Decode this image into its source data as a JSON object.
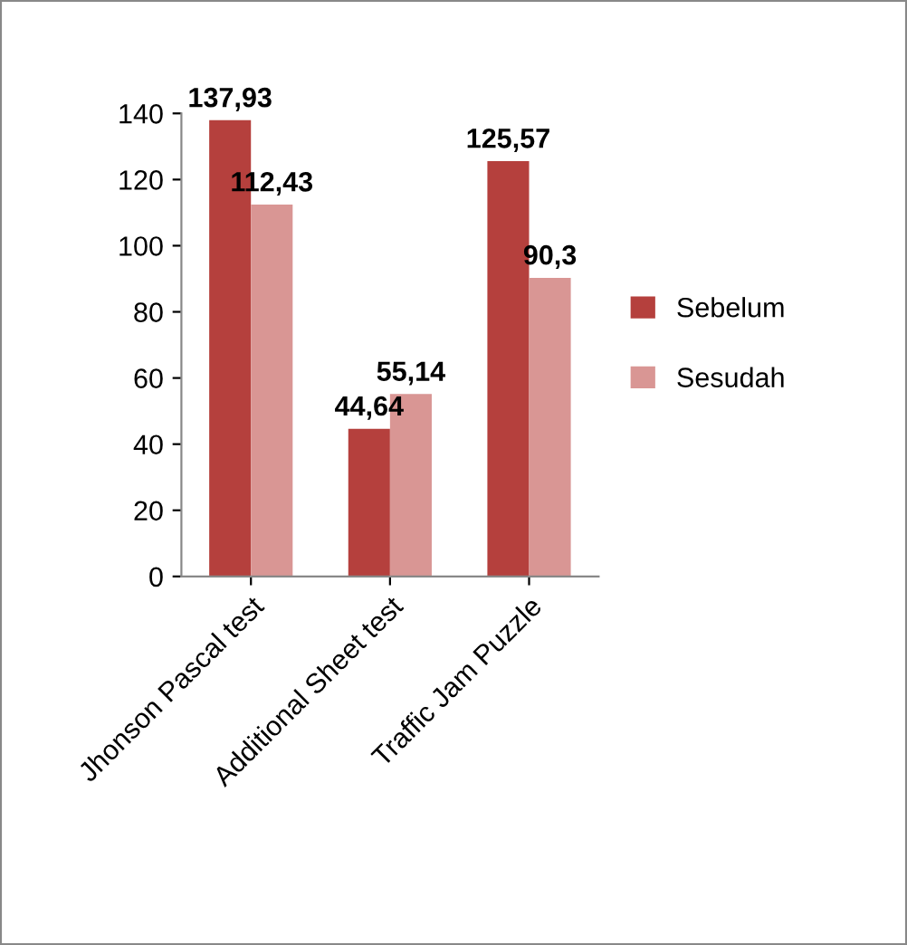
{
  "chart_data": {
    "type": "bar",
    "categories": [
      "Jhonson Pascal test",
      "Additional Sheet test",
      "Traffic Jam Puzzle"
    ],
    "series": [
      {
        "name": "Sebelum",
        "color": "#b5403d",
        "values": [
          137.93,
          44.64,
          125.57
        ],
        "value_labels": [
          "137,93",
          "44,64",
          "125,57"
        ]
      },
      {
        "name": "Sesudah",
        "color": "#d99694",
        "values": [
          112.43,
          55.14,
          90.3
        ],
        "value_labels": [
          "112,43",
          "55,14",
          "90,3"
        ]
      }
    ],
    "ylim": [
      0,
      140
    ],
    "yticks": [
      0,
      20,
      40,
      60,
      80,
      100,
      120,
      140
    ],
    "grid": false,
    "legend": "right"
  }
}
